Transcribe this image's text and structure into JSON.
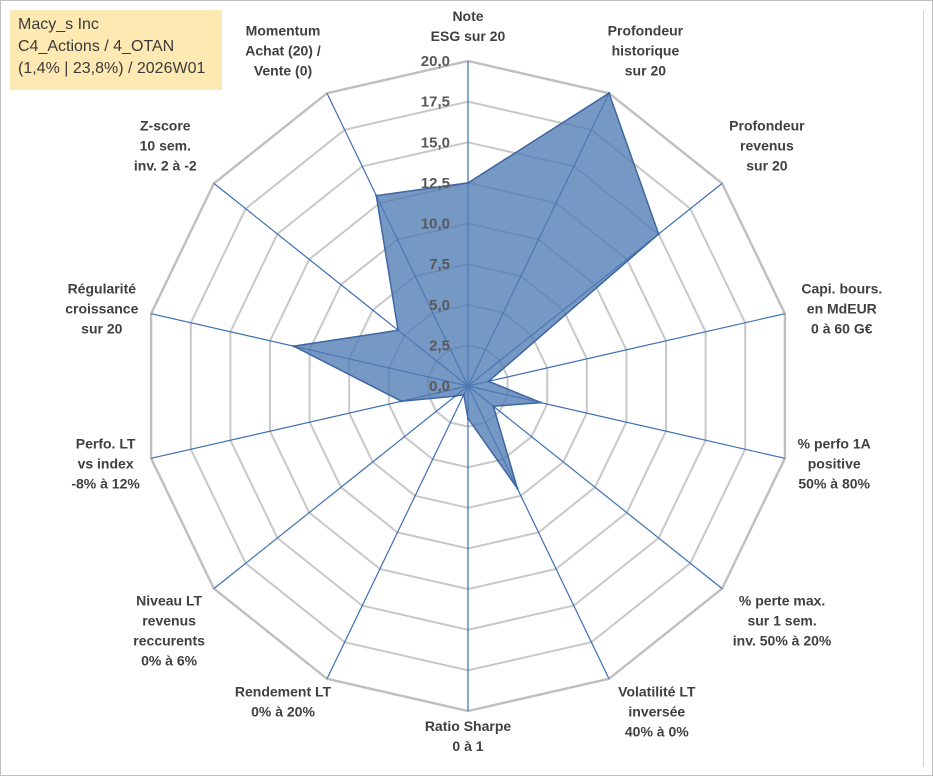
{
  "info": {
    "line1": "Macy_s Inc",
    "line2": "C4_Actions / 4_OTAN",
    "line3": "(1,4% | 23,8%) / 2026W01"
  },
  "colors": {
    "fill": "#4f7bb4",
    "stroke": "#3f66a0",
    "grid": "#c8c8c8",
    "outer_grid": "#bfbfbf",
    "spoke": "#3d6fb3"
  },
  "chart_data": {
    "type": "radar",
    "rmin": 0,
    "rmax": 20,
    "ticks": [
      "0,0",
      "2,5",
      "5,0",
      "7,5",
      "10,0",
      "12,5",
      "15,0",
      "17,5",
      "20,0"
    ],
    "axes": [
      {
        "lines": [
          "Note",
          "ESG sur 20"
        ],
        "value": 12.5
      },
      {
        "lines": [
          "Profondeur",
          "historique",
          "sur 20"
        ],
        "value": 20
      },
      {
        "lines": [
          "Profondeur",
          "revenus",
          "sur 20"
        ],
        "value": 15
      },
      {
        "lines": [
          "Capi. bours.",
          "en MdEUR",
          "0 à 60 G€"
        ],
        "value": 1.3
      },
      {
        "lines": [
          "% perfo 1A",
          "positive",
          "50% à 80%"
        ],
        "value": 4.6
      },
      {
        "lines": [
          "% perte max.",
          "sur 1 sem.",
          "inv. 50% à 20%"
        ],
        "value": 2
      },
      {
        "lines": [
          "Volatilité LT",
          "inversée",
          "40% à 0%"
        ],
        "value": 7
      },
      {
        "lines": [
          "Ratio Sharpe",
          "0 à 1"
        ],
        "value": 2
      },
      {
        "lines": [
          "Rendement LT",
          "0% à 20%"
        ],
        "value": 0.6
      },
      {
        "lines": [
          "Niveau LT",
          "revenus",
          "reccurents",
          "0% à 6%"
        ],
        "value": 1
      },
      {
        "lines": [
          "Perfo. LT",
          "vs index",
          "-8% à 12%"
        ],
        "value": 4.2
      },
      {
        "lines": [
          "Régularité",
          "croissance",
          "sur 20"
        ],
        "value": 11
      },
      {
        "lines": [
          "Z-score",
          "10 sem.",
          "inv. 2 à -2"
        ],
        "value": 5.5
      },
      {
        "lines": [
          "Momentum",
          "Achat (20) /",
          "Vente (0)"
        ],
        "value": 13
      }
    ]
  }
}
